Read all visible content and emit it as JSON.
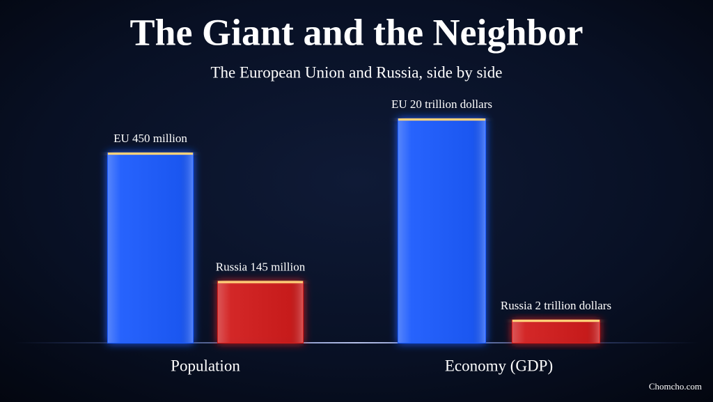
{
  "title": "The Giant and the Neighbor",
  "subtitle": "The European Union and Russia, side by side",
  "credit": "Chomcho.com",
  "chart_data": [
    {
      "type": "bar",
      "title": "Population",
      "values": [
        450,
        145
      ],
      "value_labels": [
        "EU 450 million",
        "Russia 145 million"
      ],
      "colors": [
        "#1d5cff",
        "#d21c1c"
      ]
    },
    {
      "type": "bar",
      "title": "Economy (GDP)",
      "values": [
        20,
        2
      ],
      "value_labels": [
        "EU 20 trillion dollars",
        "Russia 2 trillion dollars"
      ],
      "colors": [
        "#1d5cff",
        "#d21c1c"
      ]
    }
  ]
}
